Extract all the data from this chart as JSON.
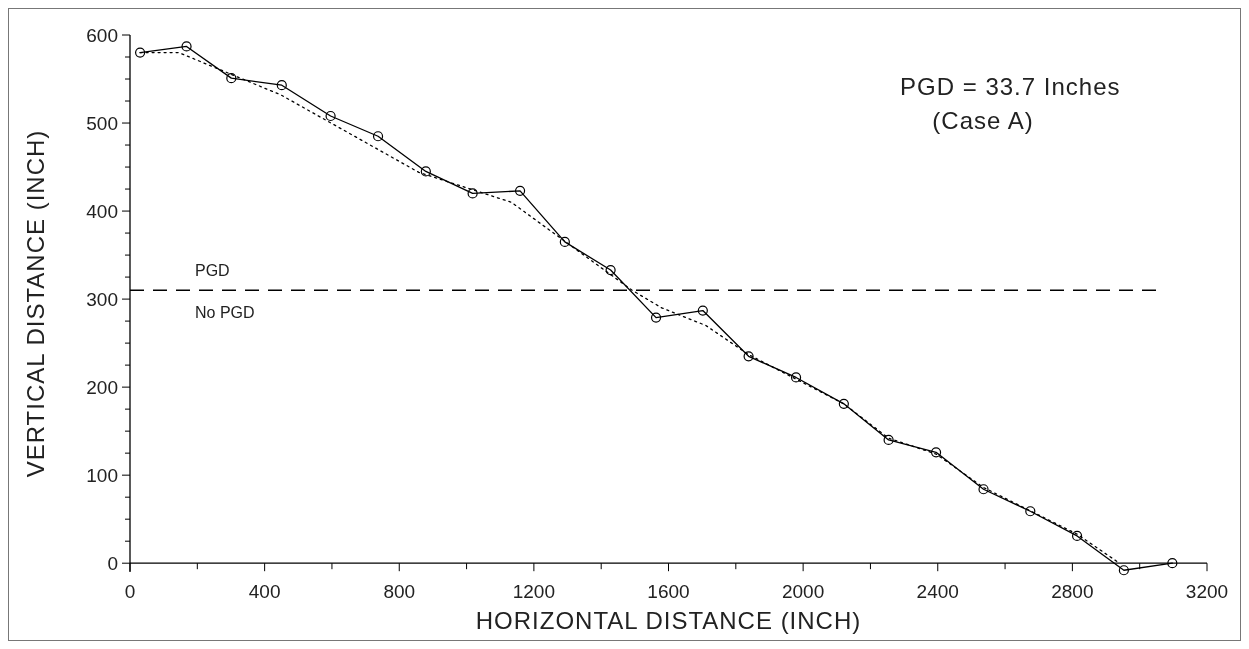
{
  "chart_data": {
    "type": "line",
    "xlabel": "HORIZONTAL DISTANCE (INCH)",
    "ylabel": "VERTICAL DISTANCE (INCH)",
    "xlim": [
      0,
      3200
    ],
    "ylim": [
      -10,
      600
    ],
    "xticks": [
      0,
      {
        "value": 200,
        "label": null
      },
      400,
      {
        "value": 600,
        "label": null
      },
      800,
      {
        "value": 1000,
        "label": null
      },
      1200,
      {
        "value": 1400,
        "label": null
      },
      1600,
      {
        "value": 1800,
        "label": null
      },
      2000,
      {
        "value": 2200,
        "label": null
      },
      2400,
      {
        "value": 2600,
        "label": null
      },
      2800,
      {
        "value": 3000,
        "label": null
      },
      3200
    ],
    "yticks": [
      0,
      {
        "value": 25,
        "label": null
      },
      {
        "value": 50,
        "label": null
      },
      {
        "value": 75,
        "label": null
      },
      100,
      {
        "value": 125,
        "label": null
      },
      {
        "value": 150,
        "label": null
      },
      {
        "value": 175,
        "label": null
      },
      200,
      {
        "value": 225,
        "label": null
      },
      {
        "value": 250,
        "label": null
      },
      {
        "value": 275,
        "label": null
      },
      300,
      {
        "value": 325,
        "label": null
      },
      {
        "value": 350,
        "label": null
      },
      {
        "value": 375,
        "label": null
      },
      400,
      {
        "value": 425,
        "label": null
      },
      {
        "value": 450,
        "label": null
      },
      {
        "value": 475,
        "label": null
      },
      500,
      {
        "value": 525,
        "label": null
      },
      {
        "value": 550,
        "label": null
      },
      {
        "value": 575,
        "label": null
      },
      600
    ],
    "grid": false,
    "series": [
      {
        "color": "#000000",
        "marker": "circle",
        "line_style": "solid",
        "x": [
          30,
          168,
          301,
          451,
          596,
          737,
          879,
          1018,
          1159,
          1292,
          1428,
          1563,
          1702,
          1838,
          1979,
          2121,
          2254,
          2395,
          2536,
          2675,
          2814,
          2953,
          3097
        ],
        "values": [
          580,
          587,
          551,
          543,
          508,
          485,
          445,
          420,
          423,
          365,
          333,
          279,
          287,
          235,
          211,
          181,
          140,
          126,
          84,
          59,
          31,
          -8,
          0
        ]
      },
      {
        "color": "#000000",
        "marker": "none",
        "line_style": "dotted",
        "x": [
          30,
          145,
          448,
          858,
          1133,
          1492,
          1580,
          1711,
          1838,
          2121,
          2254,
          2395,
          2536,
          2814,
          2940
        ],
        "values": [
          580,
          580,
          532,
          444,
          410,
          310,
          290,
          270,
          237,
          181,
          142,
          124,
          86,
          33,
          0
        ]
      }
    ],
    "ref_lines": [
      {
        "axis": "y",
        "value": 310,
        "color": "#000000",
        "line_style": "dashed"
      }
    ],
    "annotations": [
      "PGD",
      "No PGD",
      "PGD = 33.7 Inches",
      "(Case A)"
    ]
  }
}
